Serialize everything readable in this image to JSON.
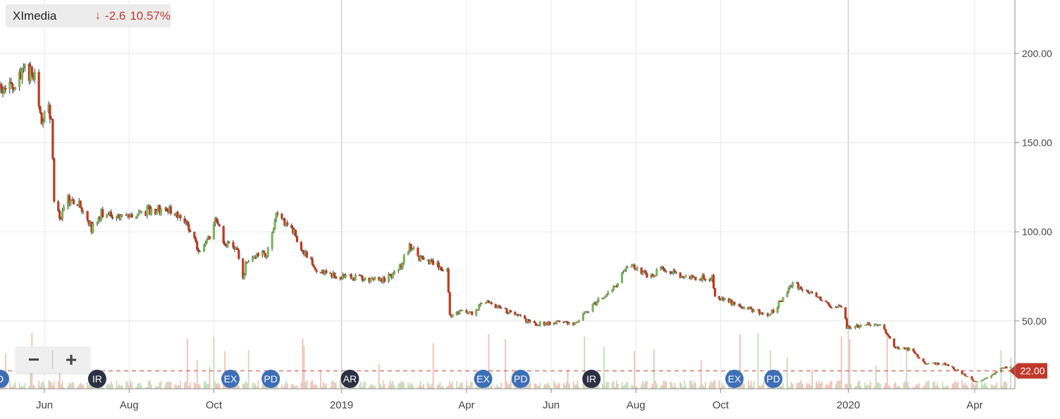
{
  "ticker": {
    "name": "XImedia",
    "change": "-2.6",
    "percent": "10.57%",
    "direction_icon": "arrow-down-icon"
  },
  "zoom": {
    "out_label": "−",
    "in_label": "+"
  },
  "colors": {
    "up": "#7cb55e",
    "down": "#c0391f",
    "grid": "#e6e6e6",
    "price_line": "#d9534f",
    "badge_blue": "#3d6fb6",
    "badge_dark": "#2b3142"
  },
  "chart_data": {
    "type": "candlestick",
    "y_axis": {
      "ticks": [
        50,
        100,
        150,
        200
      ],
      "tick_labels": [
        "50.00",
        "100.00",
        "150.00",
        "200.00"
      ],
      "range": [
        12,
        230
      ]
    },
    "x_axis": {
      "tick_labels": [
        "Jun",
        "Aug",
        "Oct",
        "2019",
        "Apr",
        "Jun",
        "Aug",
        "Oct",
        "2020",
        "Apr"
      ],
      "tick_dates": [
        "2018-06-01",
        "2018-08-01",
        "2018-10-01",
        "2019-01-01",
        "2019-04-01",
        "2019-06-01",
        "2019-08-01",
        "2019-10-01",
        "2020-01-01",
        "2020-04-01"
      ]
    },
    "date_range": [
      "2018-04-30",
      "2020-04-30"
    ],
    "current_price": {
      "value": 22.0,
      "label": "22.00"
    },
    "price_series": [
      [
        "2018-04-30",
        179
      ],
      [
        "2018-05-10",
        181
      ],
      [
        "2018-05-18",
        191
      ],
      [
        "2018-05-25",
        186
      ],
      [
        "2018-05-30",
        162
      ],
      [
        "2018-06-04",
        172
      ],
      [
        "2018-06-06",
        160
      ],
      [
        "2018-06-08",
        118
      ],
      [
        "2018-06-12",
        108
      ],
      [
        "2018-06-18",
        118
      ],
      [
        "2018-06-28",
        114
      ],
      [
        "2018-07-05",
        102
      ],
      [
        "2018-07-12",
        110
      ],
      [
        "2018-07-26",
        108
      ],
      [
        "2018-08-15",
        112
      ],
      [
        "2018-08-31",
        113
      ],
      [
        "2018-09-12",
        105
      ],
      [
        "2018-09-20",
        90
      ],
      [
        "2018-09-28",
        97
      ],
      [
        "2018-10-02",
        108
      ],
      [
        "2018-10-08",
        95
      ],
      [
        "2018-10-18",
        88
      ],
      [
        "2018-10-22",
        74
      ],
      [
        "2018-10-25",
        85
      ],
      [
        "2018-11-08",
        88
      ],
      [
        "2018-11-15",
        108
      ],
      [
        "2018-11-25",
        104
      ],
      [
        "2018-12-05",
        88
      ],
      [
        "2018-12-15",
        78
      ],
      [
        "2018-12-28",
        75
      ],
      [
        "2019-01-15",
        74
      ],
      [
        "2019-02-01",
        73
      ],
      [
        "2019-02-12",
        80
      ],
      [
        "2019-02-19",
        92
      ],
      [
        "2019-02-28",
        84
      ],
      [
        "2019-03-18",
        79
      ],
      [
        "2019-03-20",
        53
      ],
      [
        "2019-03-28",
        55
      ],
      [
        "2019-04-05",
        54
      ],
      [
        "2019-04-15",
        61
      ],
      [
        "2019-04-25",
        57
      ],
      [
        "2019-05-10",
        52
      ],
      [
        "2019-05-20",
        48
      ],
      [
        "2019-06-10",
        50
      ],
      [
        "2019-06-18",
        48
      ],
      [
        "2019-06-25",
        54
      ],
      [
        "2019-07-05",
        62
      ],
      [
        "2019-07-15",
        67
      ],
      [
        "2019-07-22",
        76
      ],
      [
        "2019-07-30",
        82
      ],
      [
        "2019-08-10",
        75
      ],
      [
        "2019-08-20",
        79
      ],
      [
        "2019-09-10",
        74
      ],
      [
        "2019-09-25",
        74
      ],
      [
        "2019-09-27",
        64
      ],
      [
        "2019-10-10",
        60
      ],
      [
        "2019-10-25",
        56
      ],
      [
        "2019-11-05",
        53
      ],
      [
        "2019-11-15",
        63
      ],
      [
        "2019-11-22",
        71
      ],
      [
        "2019-12-05",
        66
      ],
      [
        "2019-12-15",
        62
      ],
      [
        "2019-12-20",
        58
      ],
      [
        "2019-12-28",
        59
      ],
      [
        "2019-12-31",
        46
      ],
      [
        "2020-01-15",
        48
      ],
      [
        "2020-01-25",
        48
      ],
      [
        "2020-02-03",
        35
      ],
      [
        "2020-02-15",
        34
      ],
      [
        "2020-02-25",
        26
      ],
      [
        "2020-03-10",
        26
      ],
      [
        "2020-03-20",
        22
      ],
      [
        "2020-04-01",
        16
      ],
      [
        "2020-04-10",
        18
      ],
      [
        "2020-04-20",
        23
      ],
      [
        "2020-04-28",
        25
      ]
    ],
    "event_badges": [
      {
        "label": "D",
        "date": "2018-04-30",
        "style": "blue"
      },
      {
        "label": "IR",
        "date": "2018-07-09",
        "style": "dark"
      },
      {
        "label": "EX",
        "date": "2018-10-13",
        "style": "blue"
      },
      {
        "label": "PD",
        "date": "2018-11-11",
        "style": "blue"
      },
      {
        "label": "AR",
        "date": "2019-01-07",
        "style": "dark"
      },
      {
        "label": "EX",
        "date": "2019-04-13",
        "style": "blue"
      },
      {
        "label": "PD",
        "date": "2019-05-10",
        "style": "blue"
      },
      {
        "label": "IR",
        "date": "2019-06-30",
        "style": "dark"
      },
      {
        "label": "EX",
        "date": "2019-10-11",
        "style": "blue"
      },
      {
        "label": "PD",
        "date": "2019-11-08",
        "style": "blue"
      }
    ]
  }
}
